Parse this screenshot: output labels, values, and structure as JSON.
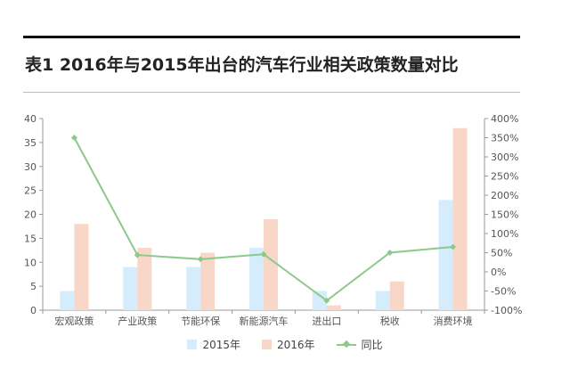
{
  "title": "表1 2016年与2015年出台的汽车行业相关政策数量对比",
  "legend": [
    {
      "label": "2015年",
      "color": "#d4ecfb"
    },
    {
      "label": "2016年",
      "color": "#f8d7c8"
    },
    {
      "label": "同比",
      "color": "#8cc98a"
    }
  ],
  "chart_data": {
    "type": "bar",
    "title": "表1 2016年与2015年出台的汽车行业相关政策数量对比",
    "categories": [
      "宏观政策",
      "产业政策",
      "节能环保",
      "新能源汽车",
      "进出口",
      "税收",
      "消费环境"
    ],
    "series": [
      {
        "name": "2015年",
        "type": "bar",
        "axis": "left",
        "values": [
          4,
          9,
          9,
          13,
          4,
          4,
          23
        ]
      },
      {
        "name": "2016年",
        "type": "bar",
        "axis": "left",
        "values": [
          18,
          13,
          12,
          19,
          1,
          6,
          38
        ]
      },
      {
        "name": "同比",
        "type": "line",
        "axis": "right",
        "values": [
          350,
          44,
          33,
          46,
          -75,
          50,
          65
        ]
      }
    ],
    "ylim": [
      0,
      40
    ],
    "yticks": [
      0,
      5,
      10,
      15,
      20,
      25,
      30,
      35,
      40
    ],
    "y2lim": [
      -100,
      400
    ],
    "y2ticks": [
      "-100%",
      "-50%",
      "0%",
      "50%",
      "100%",
      "150%",
      "200%",
      "250%",
      "300%",
      "350%",
      "400%"
    ],
    "grid": false,
    "legend_position": "bottom"
  }
}
